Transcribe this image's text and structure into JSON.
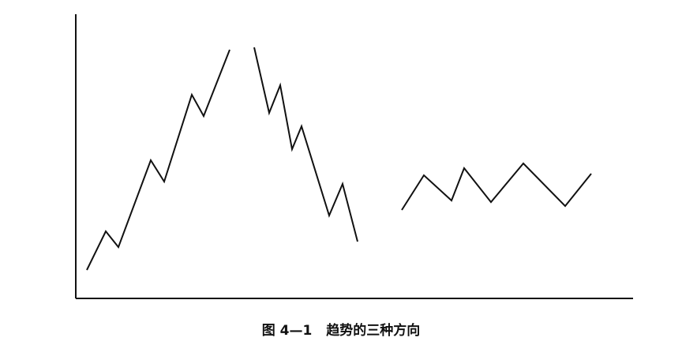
{
  "figure": {
    "caption_number": "图 4—1",
    "caption_title": "趋势的三种方向"
  },
  "trends": [
    {
      "name": "uptrend"
    },
    {
      "name": "downtrend"
    },
    {
      "name": "sideways-trend"
    }
  ],
  "colors": {
    "line": "#111111",
    "background": "#ffffff"
  }
}
